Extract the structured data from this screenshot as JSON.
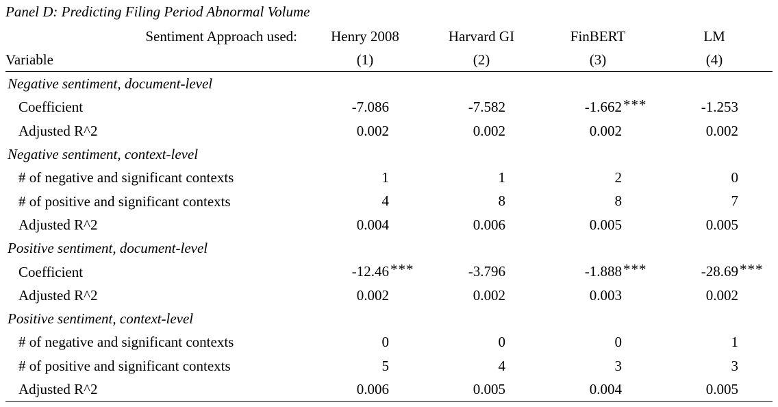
{
  "panel_title": "Panel D: Predicting Filing Period Abnormal Volume",
  "header": {
    "approach_label": "Sentiment Approach used:",
    "variable_label": "Variable",
    "models": [
      "Henry 2008",
      "Harvard GI",
      "FinBERT",
      "LM"
    ],
    "column_numbers": [
      "(1)",
      "(2)",
      "(3)",
      "(4)"
    ]
  },
  "sections": [
    {
      "title": "Negative sentiment, document-level",
      "rows": [
        {
          "label": "Coefficient",
          "values": [
            "-7.086",
            "-7.582",
            "-1.662",
            "-1.253"
          ],
          "stars": [
            "",
            "",
            "***",
            ""
          ]
        },
        {
          "label": "Adjusted R^2",
          "values": [
            "0.002",
            "0.002",
            "0.002",
            "0.002"
          ],
          "stars": [
            "",
            "",
            "",
            ""
          ]
        }
      ]
    },
    {
      "title": "Negative sentiment, context-level",
      "rows": [
        {
          "label": "# of negative and significant contexts",
          "values": [
            "1",
            "1",
            "2",
            "0"
          ],
          "stars": [
            "",
            "",
            "",
            ""
          ]
        },
        {
          "label": "# of positive and significant contexts",
          "values": [
            "4",
            "8",
            "8",
            "7"
          ],
          "stars": [
            "",
            "",
            "",
            ""
          ]
        },
        {
          "label": "Adjusted R^2",
          "values": [
            "0.004",
            "0.006",
            "0.005",
            "0.005"
          ],
          "stars": [
            "",
            "",
            "",
            ""
          ]
        }
      ]
    },
    {
      "title": "Positive sentiment, document-level",
      "rows": [
        {
          "label": "Coefficient",
          "values": [
            "-12.46",
            "-3.796",
            "-1.888",
            "-28.69"
          ],
          "stars": [
            "***",
            "",
            "***",
            "***"
          ]
        },
        {
          "label": "Adjusted R^2",
          "values": [
            "0.002",
            "0.002",
            "0.003",
            "0.002"
          ],
          "stars": [
            "",
            "",
            "",
            ""
          ]
        }
      ]
    },
    {
      "title": "Positive sentiment, context-level",
      "rows": [
        {
          "label": "# of negative and significant contexts",
          "values": [
            "0",
            "0",
            "0",
            "1"
          ],
          "stars": [
            "",
            "",
            "",
            ""
          ]
        },
        {
          "label": "# of positive and significant contexts",
          "values": [
            "5",
            "4",
            "3",
            "3"
          ],
          "stars": [
            "",
            "",
            "",
            ""
          ]
        },
        {
          "label": "Adjusted R^2",
          "values": [
            "0.006",
            "0.005",
            "0.004",
            "0.005"
          ],
          "stars": [
            "",
            "",
            "",
            ""
          ]
        }
      ]
    }
  ]
}
